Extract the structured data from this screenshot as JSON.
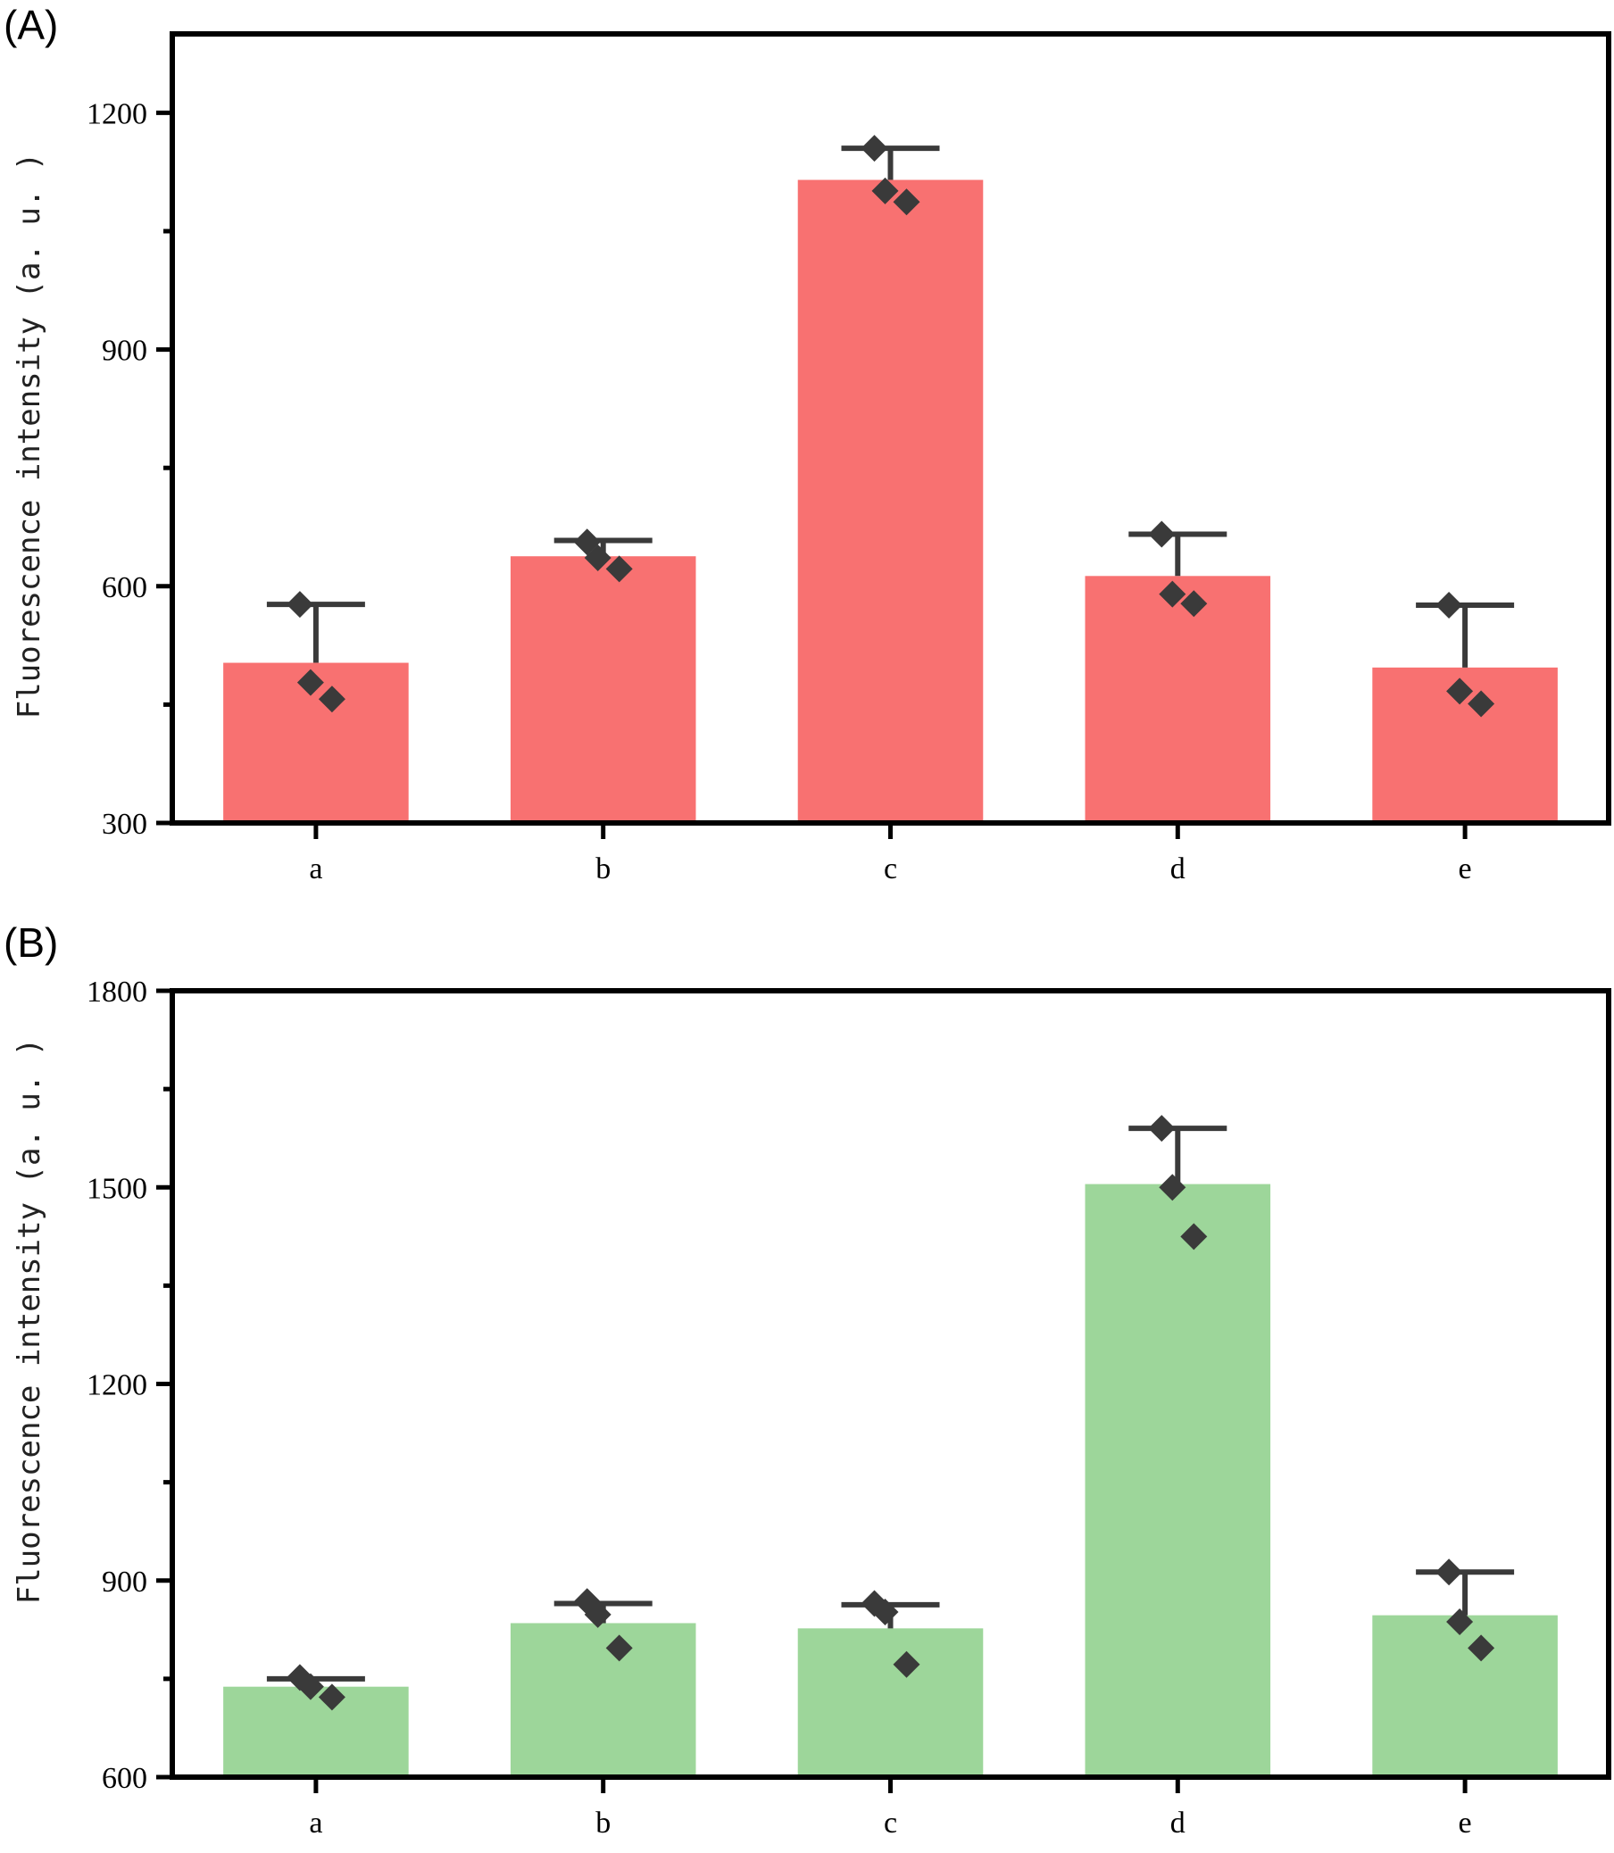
{
  "chart_data": [
    {
      "panel": "(A)",
      "type": "bar",
      "ylabel": "Fluorescence intensity (a. u. )",
      "xlabel": "",
      "ylim": [
        300,
        1300
      ],
      "yticks": [
        300,
        600,
        900,
        1200
      ],
      "categories": [
        "a",
        "b",
        "c",
        "d",
        "e"
      ],
      "bar_color": "#F87171",
      "values": [
        503,
        638,
        1115,
        613,
        497
      ],
      "error_upper": [
        577,
        658,
        1155,
        666,
        576
      ],
      "points": [
        [
          577,
          478,
          457
        ],
        [
          656,
          636,
          622
        ],
        [
          1155,
          1101,
          1087
        ],
        [
          666,
          590,
          578
        ],
        [
          576,
          467,
          451
        ]
      ],
      "grid": false,
      "legend": "none"
    },
    {
      "panel": "(B)",
      "type": "bar",
      "ylabel": "Fluorescence intensity (a. u. )",
      "xlabel": "",
      "ylim": [
        600,
        1800
      ],
      "yticks": [
        600,
        900,
        1200,
        1500,
        1800
      ],
      "categories": [
        "a",
        "b",
        "c",
        "d",
        "e"
      ],
      "bar_color": "#9DD69A",
      "values": [
        738,
        835,
        827,
        1505,
        847
      ],
      "error_upper": [
        750,
        865,
        863,
        1590,
        913
      ],
      "points": [
        [
          752,
          738,
          722
        ],
        [
          868,
          848,
          797
        ],
        [
          865,
          852,
          772
        ],
        [
          1590,
          1500,
          1425
        ],
        [
          913,
          837,
          797
        ]
      ],
      "grid": false,
      "legend": "none"
    }
  ]
}
